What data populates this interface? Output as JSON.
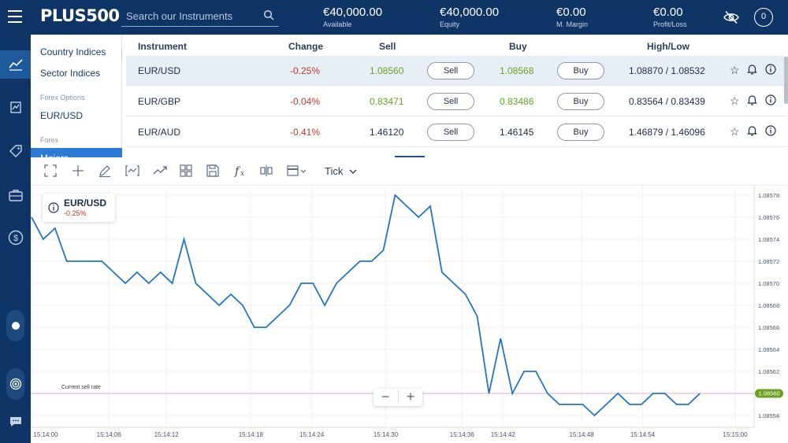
{
  "header": {
    "logo": "PLUS500",
    "search_placeholder": "Search our Instruments",
    "stats": [
      {
        "value": "€40,000.00",
        "label": "Available"
      },
      {
        "value": "€40,000.00",
        "label": "Equity"
      },
      {
        "value": "€0.00",
        "label": "M. Margin"
      },
      {
        "value": "€0.00",
        "label": "Profit/Loss"
      }
    ],
    "user_initial": "0"
  },
  "categories": {
    "items": [
      "Country Indices",
      "Sector Indices"
    ],
    "forex_options_header": "Forex Options",
    "forex_options_item": "EUR/USD",
    "forex_header": "Forex",
    "active_item": "Majors"
  },
  "table": {
    "headers": {
      "instrument": "Instrument",
      "change": "Change",
      "sell": "Sell",
      "buy": "Buy",
      "highlow": "High/Low"
    },
    "sell_label": "Sell",
    "buy_label": "Buy",
    "rows": [
      {
        "instrument": "EUR/USD",
        "change": "-0.25%",
        "sell": "1.08560",
        "buy": "1.08568",
        "highlow": "1.08870 / 1.08532"
      },
      {
        "instrument": "EUR/GBP",
        "change": "-0.04%",
        "sell": "0.83471",
        "buy": "0.83486",
        "highlow": "0.83564 / 0.83439"
      },
      {
        "instrument": "EUR/AUD",
        "change": "-0.41%",
        "sell": "1.46120",
        "buy": "1.46145",
        "highlow": "1.46879 / 1.46096"
      }
    ]
  },
  "toolbar": {
    "timeframe": "Tick"
  },
  "chart_info": {
    "instrument": "EUR/USD",
    "change": "-0.25%"
  },
  "zoom": {
    "minus": "−",
    "plus": "+"
  },
  "colors": {
    "brand": "#0f3566",
    "negative": "#c0392b",
    "positive": "#6aa121",
    "line": "#2274c6",
    "sell_rate": "#e8a8d0",
    "sell_badge": "#6aa121"
  },
  "chart_data": {
    "type": "line",
    "current_sell_rate_label": "Current sell rate",
    "current_sell_rate": 1.0856,
    "current_sell_rate_text": "1.08560",
    "y_ticks": [
      "1.08578",
      "1.08576",
      "1.08574",
      "1.08572",
      "1.08570",
      "1.08568",
      "1.08566",
      "1.08564",
      "1.08562",
      "1.08560",
      "1.08558"
    ],
    "y_tick_values": [
      1.08578,
      1.08576,
      1.08574,
      1.08572,
      1.0857,
      1.08568,
      1.08566,
      1.08564,
      1.08562,
      1.0856,
      1.08558
    ],
    "ylim": [
      1.08557,
      1.08578
    ],
    "x_ticks": [
      "15:14:00",
      "15:14:06",
      "15:14:12",
      "15:14:18",
      "15:14:24",
      "15:14:30",
      "15:14:36",
      "15:14:42",
      "15:14:48",
      "15:14:54",
      "15:15:00"
    ],
    "x_tick_positions": [
      0,
      6.6,
      11.5,
      18.7,
      23.9,
      30.2,
      36.7,
      40.2,
      46.9,
      52.1,
      60
    ],
    "xlim": [
      0,
      60
    ],
    "series": [
      {
        "values": [
          1.08576,
          1.08574,
          1.08575,
          1.08572,
          1.08572,
          1.08572,
          1.08572,
          1.08571,
          1.0857,
          1.08571,
          1.0857,
          1.08571,
          1.0857,
          1.08574,
          1.0857,
          1.08569,
          1.08568,
          1.08569,
          1.08568,
          1.08566,
          1.08566,
          1.08567,
          1.08568,
          1.0857,
          1.0857,
          1.08568,
          1.0857,
          1.08571,
          1.08572,
          1.08572,
          1.08573,
          1.08578,
          1.08577,
          1.08576,
          1.08577,
          1.08571,
          1.0857,
          1.08569,
          1.08567,
          1.0856,
          1.08565,
          1.0856,
          1.08562,
          1.08562,
          1.0856,
          1.08559,
          1.08559,
          1.08559,
          1.08558,
          1.08559,
          1.0856,
          1.08559,
          1.08559,
          1.0856,
          1.0856,
          1.08559,
          1.08559,
          1.0856
        ],
        "x": [
          0,
          1,
          2,
          3,
          4,
          5,
          6,
          7,
          8,
          9,
          10,
          11,
          12,
          13,
          14,
          15,
          16,
          17,
          18,
          19,
          20,
          21,
          22,
          23,
          24,
          25,
          26,
          27,
          28,
          29,
          30,
          31,
          32,
          33,
          34,
          35,
          36,
          37,
          38,
          39,
          40,
          41,
          42,
          43,
          44,
          45,
          46,
          47,
          48,
          49,
          50,
          51,
          52,
          53,
          54,
          55,
          56,
          57
        ]
      }
    ]
  }
}
